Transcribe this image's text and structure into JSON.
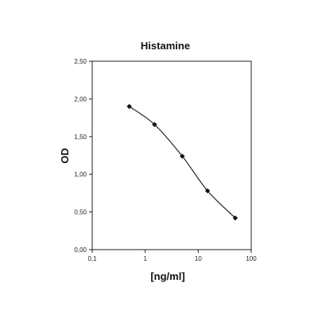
{
  "chart_data": {
    "type": "line",
    "title": "Histamine",
    "xlabel": "[ng/ml]",
    "ylabel": "OD",
    "x_scale": "log",
    "xlim": [
      0.1,
      100
    ],
    "ylim": [
      0,
      2.5
    ],
    "x_ticks": [
      0.1,
      1,
      10,
      100
    ],
    "x_tick_labels": [
      "0,1",
      "1",
      "10",
      "100"
    ],
    "y_ticks": [
      0,
      0.5,
      1.0,
      1.5,
      2.0,
      2.5
    ],
    "y_tick_labels": [
      "0,00",
      "0,50",
      "1,00",
      "1,50",
      "2,00",
      "2,50"
    ],
    "grid": false,
    "legend": "none",
    "marker": "diamond",
    "series": [
      {
        "x": [
          0.5,
          1.5,
          5,
          15,
          50
        ],
        "y": [
          1.9,
          1.66,
          1.24,
          0.78,
          0.42
        ]
      }
    ]
  }
}
